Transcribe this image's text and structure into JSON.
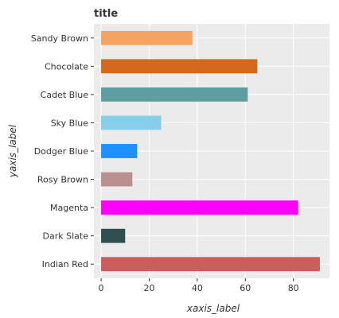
{
  "chart_data": {
    "type": "bar",
    "orientation": "horizontal",
    "title": "title",
    "xlabel": "xaxis_label",
    "ylabel": "yaxis_label",
    "categories": [
      "Indian Red",
      "Dark Slate",
      "Magenta",
      "Rosy Brown",
      "Dodger Blue",
      "Sky Blue",
      "Cadet Blue",
      "Chocolate",
      "Sandy Brown"
    ],
    "values": [
      91,
      10,
      82,
      13,
      15,
      25,
      61,
      65,
      38
    ],
    "colors": [
      "#cd5c5c",
      "#2f4f4f",
      "#ff00ff",
      "#bc8f8f",
      "#1e90ff",
      "#87ceeb",
      "#5f9ea0",
      "#d2691e",
      "#f4a460"
    ],
    "xlim": [
      -3,
      95
    ],
    "xticks": [
      0,
      20,
      40,
      60,
      80
    ],
    "grid": true,
    "background": "#ebebeb"
  }
}
